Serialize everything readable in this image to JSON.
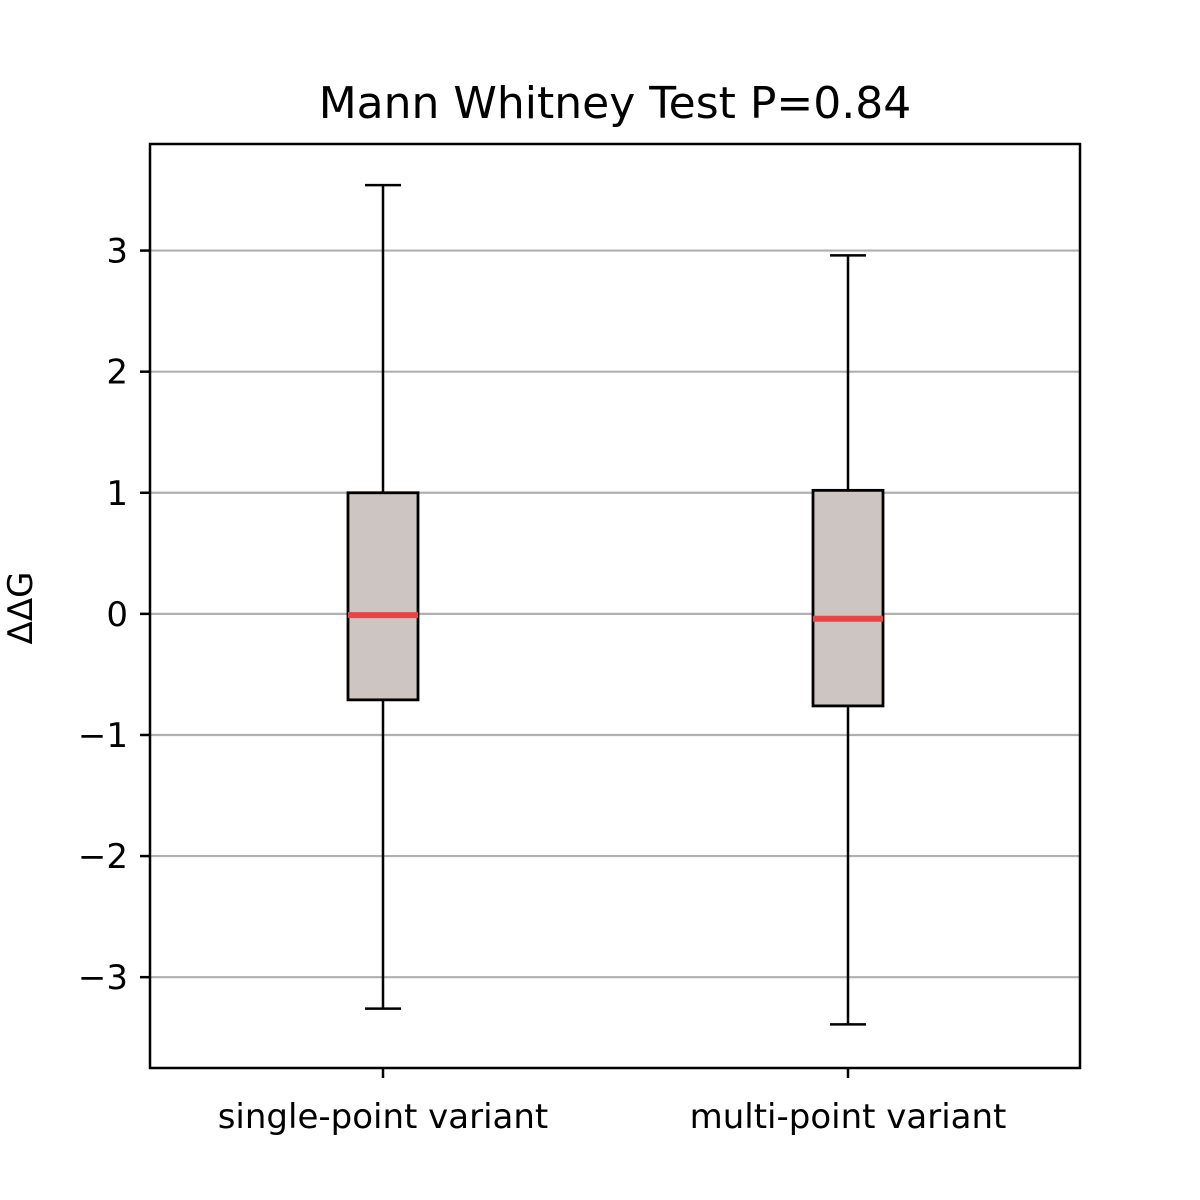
{
  "chart_data": {
    "type": "box",
    "title": "Mann Whitney Test P=0.84",
    "xlabel": "",
    "ylabel": "ΔΔG",
    "ylim": [
      -3.75,
      3.88
    ],
    "yticks": [
      -3,
      -2,
      -1,
      0,
      1,
      2,
      3
    ],
    "ytick_labels": [
      "−3",
      "−2",
      "−1",
      "0",
      "1",
      "2",
      "3"
    ],
    "grid": "y",
    "categories": [
      "single-point variant",
      "multi-point variant"
    ],
    "boxes": [
      {
        "category": "single-point variant",
        "whisker_low": -3.26,
        "q1": -0.71,
        "median": -0.01,
        "q3": 1.0,
        "whisker_high": 3.54
      },
      {
        "category": "multi-point variant",
        "whisker_low": -3.39,
        "q1": -0.76,
        "median": -0.04,
        "q3": 1.02,
        "whisker_high": 2.96
      }
    ],
    "colors": {
      "box_fill": "#cdc5c2",
      "median": "#e84445",
      "grid": "#b0b0b0",
      "frame": "#000000"
    }
  }
}
